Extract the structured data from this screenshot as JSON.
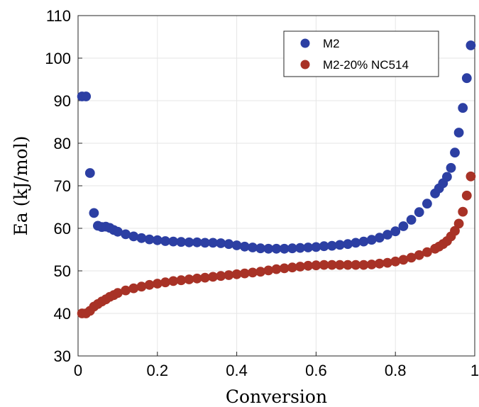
{
  "chart_data": {
    "type": "scatter",
    "xlabel": "Conversion",
    "ylabel": "Ea (kJ/mol)",
    "xlim": [
      0,
      1
    ],
    "ylim": [
      30,
      110
    ],
    "x_ticks": [
      "0",
      "0.2",
      "0.4",
      "0.6",
      "0.8",
      "1"
    ],
    "y_ticks": [
      "30",
      "40",
      "50",
      "60",
      "70",
      "80",
      "90",
      "100",
      "110"
    ],
    "grid": true,
    "legend_position": "top-right",
    "series": [
      {
        "name": "M2",
        "color": "#2c3fa3",
        "x": [
          0.01,
          0.02,
          0.03,
          0.04,
          0.05,
          0.06,
          0.07,
          0.08,
          0.09,
          0.1,
          0.12,
          0.14,
          0.16,
          0.18,
          0.2,
          0.22,
          0.24,
          0.26,
          0.28,
          0.3,
          0.32,
          0.34,
          0.36,
          0.38,
          0.4,
          0.42,
          0.44,
          0.46,
          0.48,
          0.5,
          0.52,
          0.54,
          0.56,
          0.58,
          0.6,
          0.62,
          0.64,
          0.66,
          0.68,
          0.7,
          0.72,
          0.74,
          0.76,
          0.78,
          0.8,
          0.82,
          0.84,
          0.86,
          0.88,
          0.9,
          0.91,
          0.92,
          0.93,
          0.94,
          0.95,
          0.96,
          0.97,
          0.98,
          0.99
        ],
        "y": [
          91,
          91,
          73,
          63.6,
          60.6,
          60.3,
          60.4,
          60.1,
          59.6,
          59.2,
          58.6,
          58.1,
          57.7,
          57.4,
          57.2,
          57.0,
          56.9,
          56.8,
          56.7,
          56.7,
          56.6,
          56.6,
          56.5,
          56.3,
          56.0,
          55.7,
          55.5,
          55.3,
          55.2,
          55.2,
          55.2,
          55.3,
          55.4,
          55.5,
          55.6,
          55.8,
          55.9,
          56.1,
          56.3,
          56.6,
          56.9,
          57.3,
          57.8,
          58.5,
          59.3,
          60.5,
          62.0,
          63.8,
          65.8,
          68.2,
          69.4,
          70.6,
          72.1,
          74.2,
          77.8,
          82.5,
          88.3,
          95.3,
          103.0
        ]
      },
      {
        "name": "M2-20% NC514",
        "color": "#a83226",
        "x": [
          0.01,
          0.02,
          0.03,
          0.04,
          0.05,
          0.06,
          0.07,
          0.08,
          0.09,
          0.1,
          0.12,
          0.14,
          0.16,
          0.18,
          0.2,
          0.22,
          0.24,
          0.26,
          0.28,
          0.3,
          0.32,
          0.34,
          0.36,
          0.38,
          0.4,
          0.42,
          0.44,
          0.46,
          0.48,
          0.5,
          0.52,
          0.54,
          0.56,
          0.58,
          0.6,
          0.62,
          0.64,
          0.66,
          0.68,
          0.7,
          0.72,
          0.74,
          0.76,
          0.78,
          0.8,
          0.82,
          0.84,
          0.86,
          0.88,
          0.9,
          0.91,
          0.92,
          0.93,
          0.94,
          0.95,
          0.96,
          0.97,
          0.98,
          0.99
        ],
        "y": [
          40,
          40,
          40.6,
          41.6,
          42.2,
          42.8,
          43.3,
          43.9,
          44.3,
          44.8,
          45.4,
          45.9,
          46.3,
          46.7,
          47.0,
          47.3,
          47.6,
          47.8,
          48.0,
          48.2,
          48.4,
          48.6,
          48.8,
          49.0,
          49.2,
          49.4,
          49.6,
          49.8,
          50.1,
          50.4,
          50.6,
          50.8,
          51.0,
          51.2,
          51.3,
          51.4,
          51.4,
          51.4,
          51.4,
          51.4,
          51.4,
          51.5,
          51.7,
          51.9,
          52.2,
          52.6,
          53.1,
          53.7,
          54.4,
          55.2,
          55.7,
          56.3,
          57.0,
          58.1,
          59.4,
          61.1,
          63.9,
          67.7,
          72.2
        ]
      }
    ]
  }
}
